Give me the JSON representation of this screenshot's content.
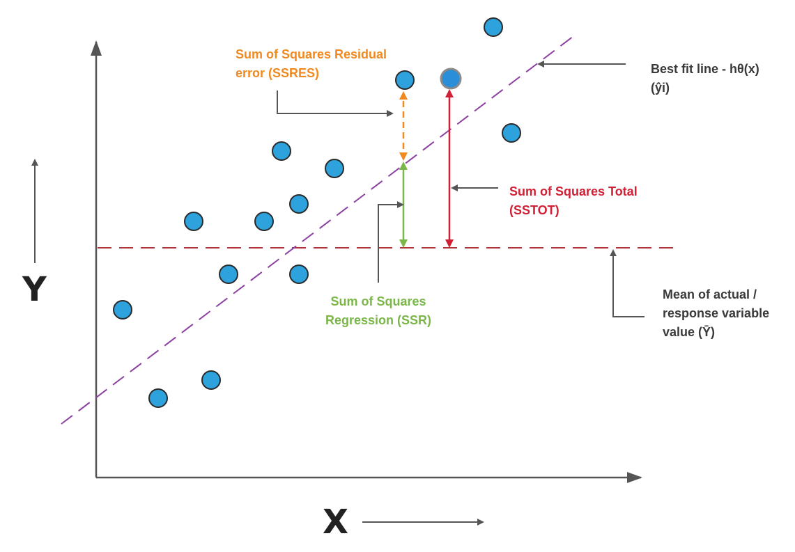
{
  "axes": {
    "y_label": "Y",
    "x_label": "X"
  },
  "labels": {
    "ssres_line1": "Sum of Squares Residual",
    "ssres_line2": "error (SSRES)",
    "best_fit_line1": "Best fit line - hθ(x)",
    "best_fit_line2": "(ŷi)",
    "sstot_line1": "Sum of Squares Total",
    "sstot_line2": "(SSTOT)",
    "ssr_line1": "Sum of Squares",
    "ssr_line2": "Regression (SSR)",
    "mean_line1": "Mean of actual /",
    "mean_line2": "response variable",
    "mean_line3": "value (Ȳ)"
  },
  "colors": {
    "point_fill": "#2ea2dc",
    "point_stroke": "#2a2a2a",
    "highlight_point_fill": "#2a8ed8",
    "highlight_point_stroke": "#8a8a8a",
    "fit_line": "#8b3fa0",
    "mean_line": "#b0333a",
    "ssres": "#f0891f",
    "ssr": "#7ab648",
    "sstot": "#d02035",
    "axis": "#555555",
    "pointer": "#555555",
    "text_dark": "#3a3a3a"
  },
  "icons": {
    "ssres_pointer": "elbow-arrow-icon",
    "sstot_pointer": "arrow-left-icon",
    "ssr_pointer": "elbow-arrow-icon",
    "best_fit_pointer": "arrow-left-icon",
    "mean_pointer": "elbow-arrow-up-icon",
    "y_direction": "arrow-up-icon",
    "x_direction": "arrow-right-icon"
  }
}
